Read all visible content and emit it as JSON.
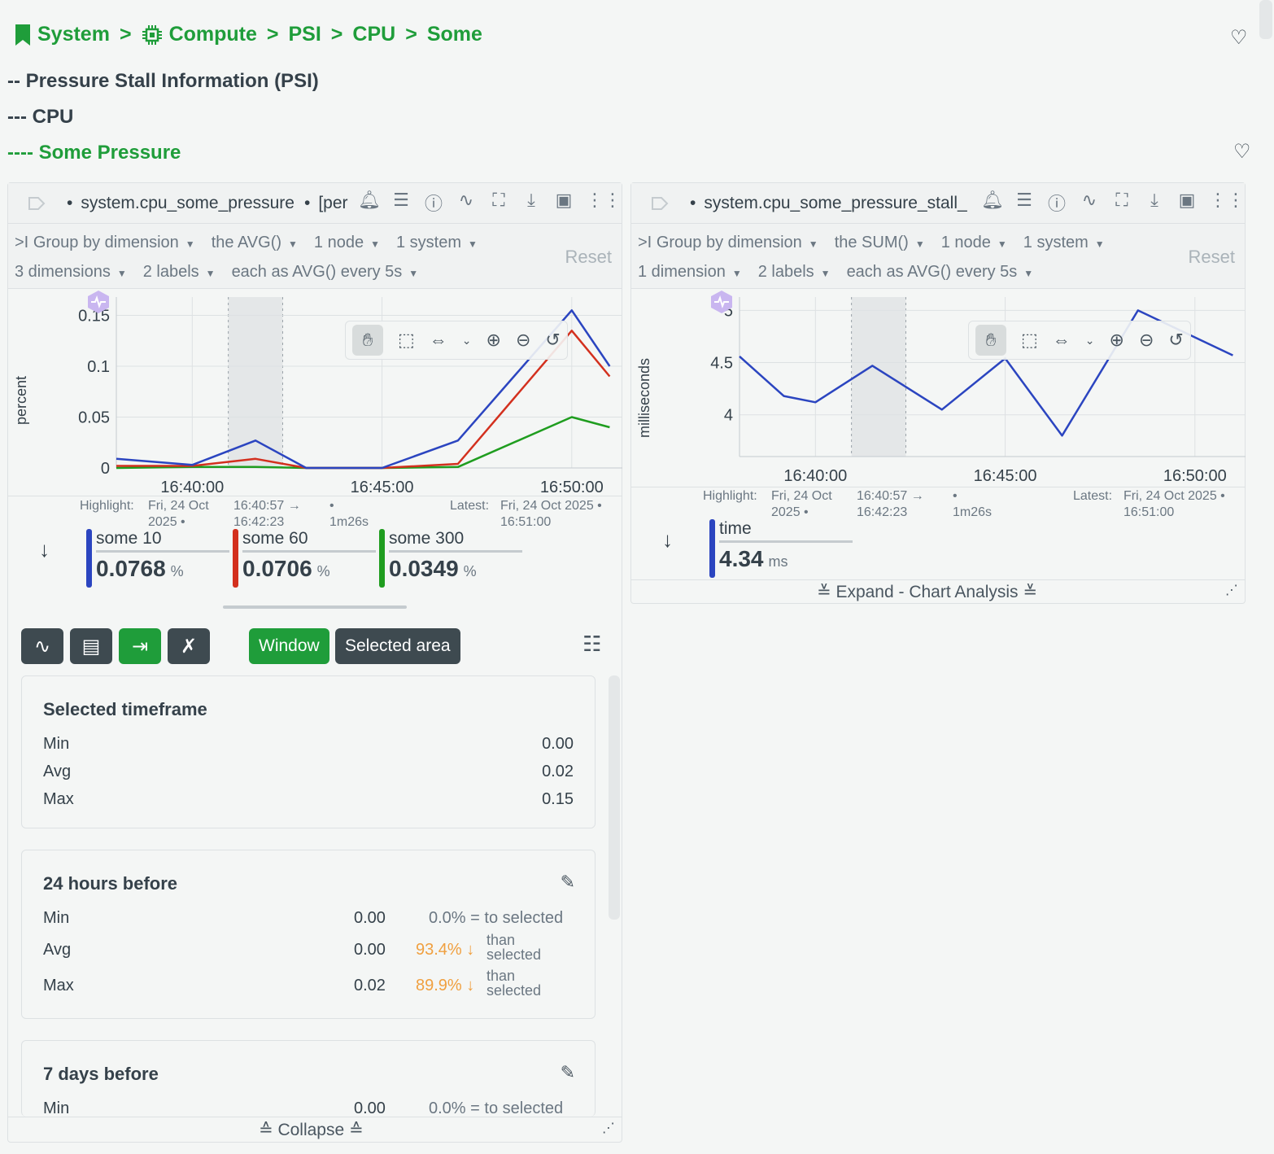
{
  "breadcrumb": {
    "items": [
      "System",
      "Compute",
      "PSI",
      "CPU",
      "Some"
    ],
    "separator": ">"
  },
  "headings": {
    "h1": "-- Pressure Stall Information (PSI)",
    "h2": "--- CPU",
    "h3": "---- Some Pressure"
  },
  "chart1": {
    "title": "system.cpu_some_pressure",
    "title_suffix": "[per",
    "dot": "•",
    "filters_row1": [
      "Group by dimension",
      "the AVG()",
      "1 node",
      "1 system"
    ],
    "filters_row1_prefix": ">I",
    "filters_row2": [
      "3 dimensions",
      "2 labels",
      "each as AVG() every 5s"
    ],
    "reset": "Reset",
    "ylabel": "percent",
    "highlight_label": "Highlight:",
    "highlight_date": "Fri, 24 Oct 2025 •",
    "highlight_range": "16:40:57 → 16:42:23",
    "highlight_dot": "•",
    "highlight_duration": "1m26s",
    "latest_label": "Latest:",
    "latest_value": "Fri, 24 Oct 2025 • 16:51:00",
    "legend": [
      {
        "name": "some 10",
        "value": "0.0768",
        "unit": "%",
        "color": "#2b45c0"
      },
      {
        "name": "some 60",
        "value": "0.0706",
        "unit": "%",
        "color": "#d3301e"
      },
      {
        "name": "some 300",
        "value": "0.0349",
        "unit": "%",
        "color": "#1f9d1f"
      }
    ],
    "buttons": {
      "window": "Window",
      "selected_area": "Selected area"
    },
    "collapse": "Collapse"
  },
  "chart2": {
    "title": "system.cpu_some_pressure_stall_",
    "dot": "•",
    "filters_row1": [
      "Group by dimension",
      "the SUM()",
      "1 node",
      "1 system"
    ],
    "filters_row1_prefix": ">I",
    "filters_row2": [
      "1 dimension",
      "2 labels",
      "each as AVG() every 5s"
    ],
    "reset": "Reset",
    "ylabel": "milliseconds",
    "highlight_label": "Highlight:",
    "highlight_date": "Fri, 24 Oct 2025 •",
    "highlight_range": "16:40:57 → 16:42:23",
    "highlight_dot": "•",
    "highlight_duration": "1m26s",
    "latest_label": "Latest:",
    "latest_value": "Fri, 24 Oct 2025 • 16:51:00",
    "legend": [
      {
        "name": "time",
        "value": "4.34",
        "unit": "ms",
        "color": "#2b45c0"
      }
    ],
    "expand": "Expand - Chart Analysis"
  },
  "analysis": {
    "selected": {
      "title": "Selected timeframe",
      "rows": [
        {
          "label": "Min",
          "value": "0.00"
        },
        {
          "label": "Avg",
          "value": "0.02"
        },
        {
          "label": "Max",
          "value": "0.15"
        }
      ]
    },
    "day": {
      "title": "24 hours before",
      "rows": [
        {
          "label": "Min",
          "value": "0.00",
          "pct": "0.0%",
          "cmp": "= to selected"
        },
        {
          "label": "Avg",
          "value": "0.00",
          "pct": "93.4% ↓",
          "cmp": "than selected"
        },
        {
          "label": "Max",
          "value": "0.02",
          "pct": "89.9% ↓",
          "cmp": "than selected"
        }
      ]
    },
    "week": {
      "title": "7 days before",
      "rows": [
        {
          "label": "Min",
          "value": "0.00",
          "pct": "0.0%",
          "cmp": "= to selected"
        }
      ]
    }
  },
  "chart_data": [
    {
      "type": "line",
      "x": [
        "16:38:00",
        "16:40:00",
        "16:41:40",
        "16:43:00",
        "16:45:00",
        "16:47:00",
        "16:50:00",
        "16:51:00"
      ],
      "xticks": [
        "16:40:00",
        "16:45:00",
        "16:50:00"
      ],
      "yticks": [
        "0",
        "0.05",
        "0.1",
        "0.15"
      ],
      "ylabel": "percent",
      "ylim": [
        0,
        0.16
      ],
      "series": [
        {
          "name": "some 10",
          "color": "#2b45c0",
          "values": [
            0.009,
            0.003,
            0.027,
            0.0,
            0.0,
            0.027,
            0.155,
            0.1
          ]
        },
        {
          "name": "some 60",
          "color": "#d3301e",
          "values": [
            0.002,
            0.002,
            0.009,
            0.0,
            0.0,
            0.004,
            0.135,
            0.09
          ]
        },
        {
          "name": "some 300",
          "color": "#1f9d1f",
          "values": [
            0.0,
            0.001,
            0.001,
            0.0,
            0.0,
            0.001,
            0.05,
            0.04
          ]
        }
      ]
    },
    {
      "type": "line",
      "x": [
        "16:38:00",
        "16:39:10",
        "16:40:00",
        "16:41:30",
        "16:43:20",
        "16:45:00",
        "16:46:30",
        "16:48:30",
        "16:51:00"
      ],
      "xticks": [
        "16:40:00",
        "16:45:00",
        "16:50:00"
      ],
      "yticks": [
        "4",
        "4.5",
        "5"
      ],
      "ylabel": "milliseconds",
      "ylim": [
        3.6,
        5.05
      ],
      "series": [
        {
          "name": "time",
          "color": "#2b45c0",
          "values": [
            4.56,
            4.18,
            4.12,
            4.47,
            4.05,
            4.54,
            3.8,
            5.0,
            4.57
          ]
        }
      ]
    }
  ]
}
